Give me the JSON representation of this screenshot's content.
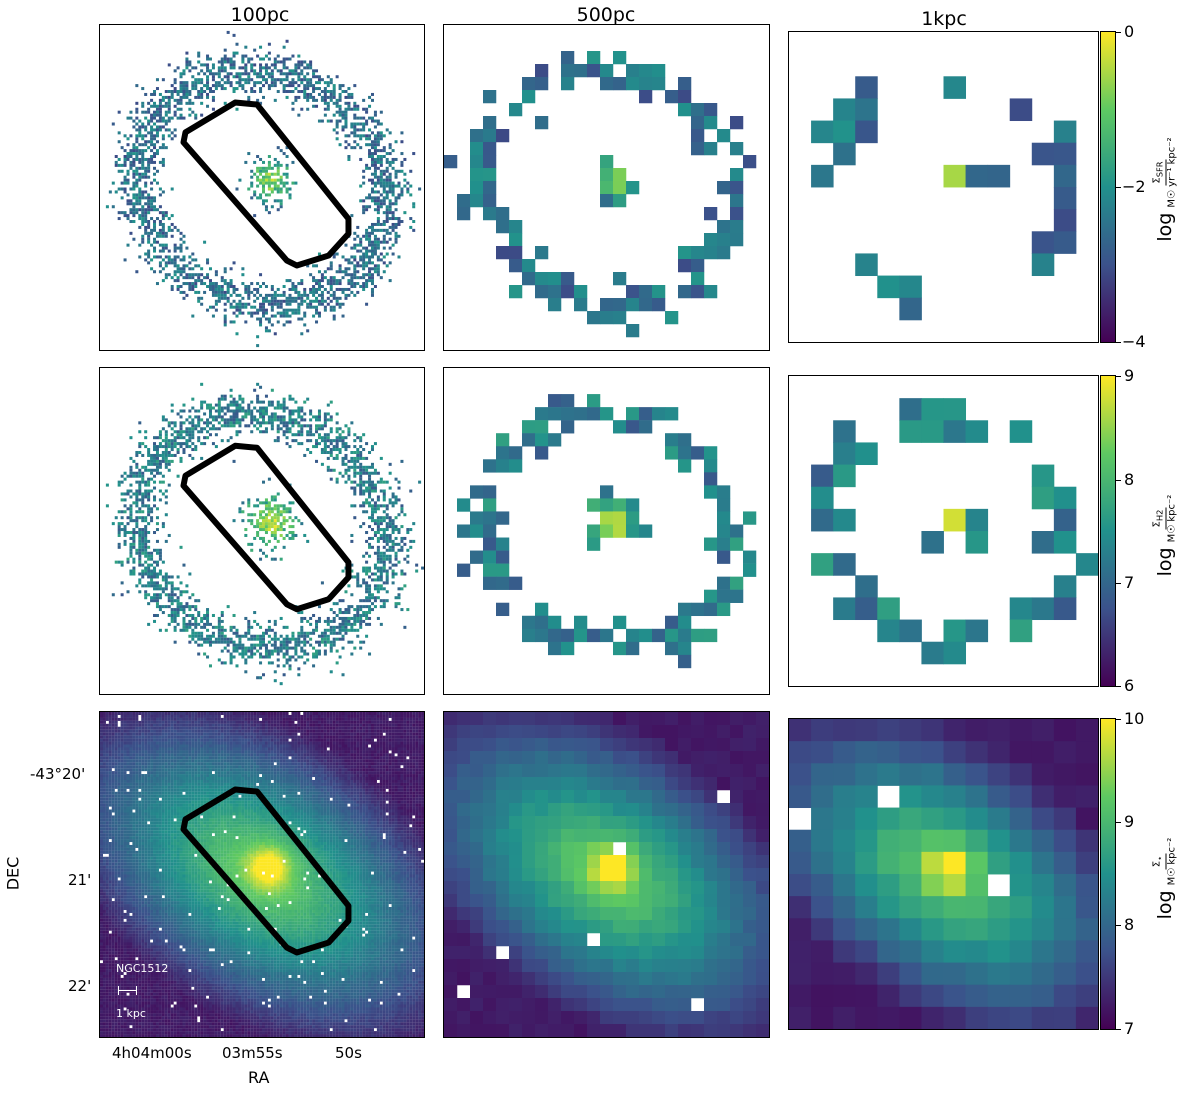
{
  "column_titles": [
    "100pc",
    "500pc",
    "1kpc"
  ],
  "colorbars": [
    {
      "num": "Σ",
      "num_sub": "SFR",
      "den": "M☉ yr⁻¹ kpc⁻²",
      "log": "log",
      "ticks": [
        "0",
        "−2",
        "−4"
      ],
      "range": [
        -4,
        0
      ]
    },
    {
      "num": "Σ",
      "num_sub": "H2",
      "den": "M☉ kpc⁻²",
      "log": "log",
      "ticks": [
        "9",
        "8",
        "7",
        "6"
      ],
      "range": [
        6,
        9
      ]
    },
    {
      "num": "Σ",
      "num_sub": "⋆",
      "den": "M☉ kpc⁻²",
      "log": "log",
      "ticks": [
        "10",
        "9",
        "8",
        "7"
      ],
      "range": [
        7,
        10
      ]
    }
  ],
  "axes": {
    "xlabel": "RA",
    "ylabel": "DEC",
    "x_ticks": [
      "4h04m00s",
      "03m55s",
      "50s"
    ],
    "y_ticks": [
      "-43°20'",
      "21'",
      "22'"
    ]
  },
  "galaxy": {
    "name": "NGC1512",
    "scalebar_label": "1 kpc"
  },
  "chart_data": [
    {
      "type": "heatmap",
      "row": "SFR surface density",
      "resolution": "100pc",
      "colorbar_range": [
        -4,
        0
      ]
    },
    {
      "type": "heatmap",
      "row": "SFR surface density",
      "resolution": "500pc",
      "colorbar_range": [
        -4,
        0
      ]
    },
    {
      "type": "heatmap",
      "row": "SFR surface density",
      "resolution": "1kpc",
      "colorbar_range": [
        -4,
        0
      ]
    },
    {
      "type": "heatmap",
      "row": "H2 surface density",
      "resolution": "100pc",
      "colorbar_range": [
        6,
        9
      ]
    },
    {
      "type": "heatmap",
      "row": "H2 surface density",
      "resolution": "500pc",
      "colorbar_range": [
        6,
        9
      ]
    },
    {
      "type": "heatmap",
      "row": "H2 surface density",
      "resolution": "1kpc",
      "colorbar_range": [
        6,
        9
      ]
    },
    {
      "type": "heatmap",
      "row": "stellar mass surface density",
      "resolution": "100pc",
      "colorbar_range": [
        7,
        10
      ]
    },
    {
      "type": "heatmap",
      "row": "stellar mass surface density",
      "resolution": "500pc",
      "colorbar_range": [
        7,
        10
      ]
    },
    {
      "type": "heatmap",
      "row": "stellar mass surface density",
      "resolution": "1kpc",
      "colorbar_range": [
        7,
        10
      ]
    }
  ]
}
